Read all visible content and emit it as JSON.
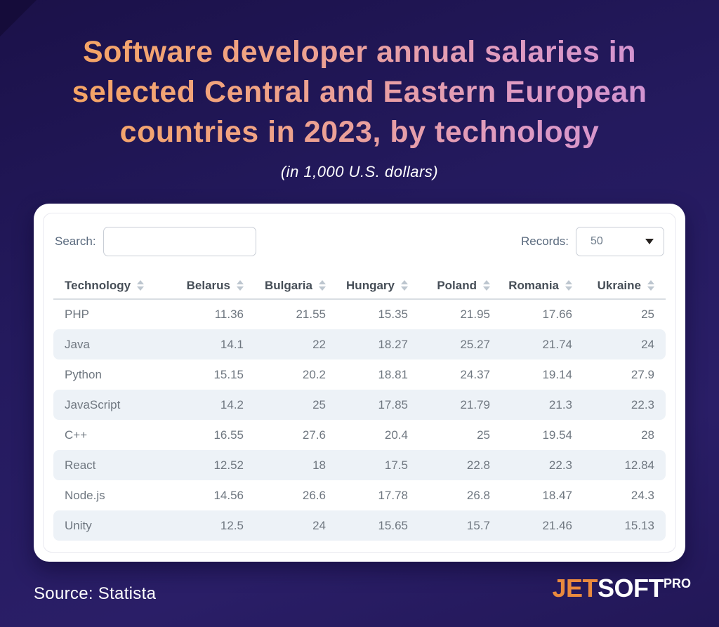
{
  "title": {
    "lines": [
      "Software developer annual salaries in",
      "selected Central and Eastern European",
      "countries in 2023, by technology"
    ],
    "subtitle": "(in 1,000 U.S. dollars)"
  },
  "controls": {
    "search_label": "Search:",
    "search_value": "",
    "records_label": "Records:",
    "records_value": "50"
  },
  "chart_data": {
    "type": "table",
    "unit": "1,000 U.S. dollars",
    "columns": [
      "Technology",
      "Belarus",
      "Bulgaria",
      "Hungary",
      "Poland",
      "Romania",
      "Ukraine"
    ],
    "sortable": true,
    "rows": [
      [
        "PHP",
        "11.36",
        "21.55",
        "15.35",
        "21.95",
        "17.66",
        "25"
      ],
      [
        "Java",
        "14.1",
        "22",
        "18.27",
        "25.27",
        "21.74",
        "24"
      ],
      [
        "Python",
        "15.15",
        "20.2",
        "18.81",
        "24.37",
        "19.14",
        "27.9"
      ],
      [
        "JavaScript",
        "14.2",
        "25",
        "17.85",
        "21.79",
        "21.3",
        "22.3"
      ],
      [
        "C++",
        "16.55",
        "27.6",
        "20.4",
        "25",
        "19.54",
        "28"
      ],
      [
        "React",
        "12.52",
        "18",
        "17.5",
        "22.8",
        "22.3",
        "12.84"
      ],
      [
        "Node.js",
        "14.56",
        "26.6",
        "17.78",
        "26.8",
        "18.47",
        "24.3"
      ],
      [
        "Unity",
        "12.5",
        "24",
        "15.65",
        "15.7",
        "21.46",
        "15.13"
      ]
    ]
  },
  "footer": {
    "source": "Source: Statista",
    "logo_jet": "JET",
    "logo_soft": "SOFT",
    "logo_pro": "PRO"
  },
  "icons": {
    "sort": "sort-icon",
    "dropdown_caret": "dropdown-caret-icon"
  },
  "colors": {
    "background_top": "#1b1149",
    "background_bottom": "#2a1e67",
    "title_gradient_start": "#f6a558",
    "title_gradient_end": "#cb8fda",
    "card": "#ffffff",
    "row_stripe": "#edf2f7",
    "header_text": "#464e57",
    "cell_text": "#6f7780",
    "logo_orange": "#ea8a3e"
  }
}
